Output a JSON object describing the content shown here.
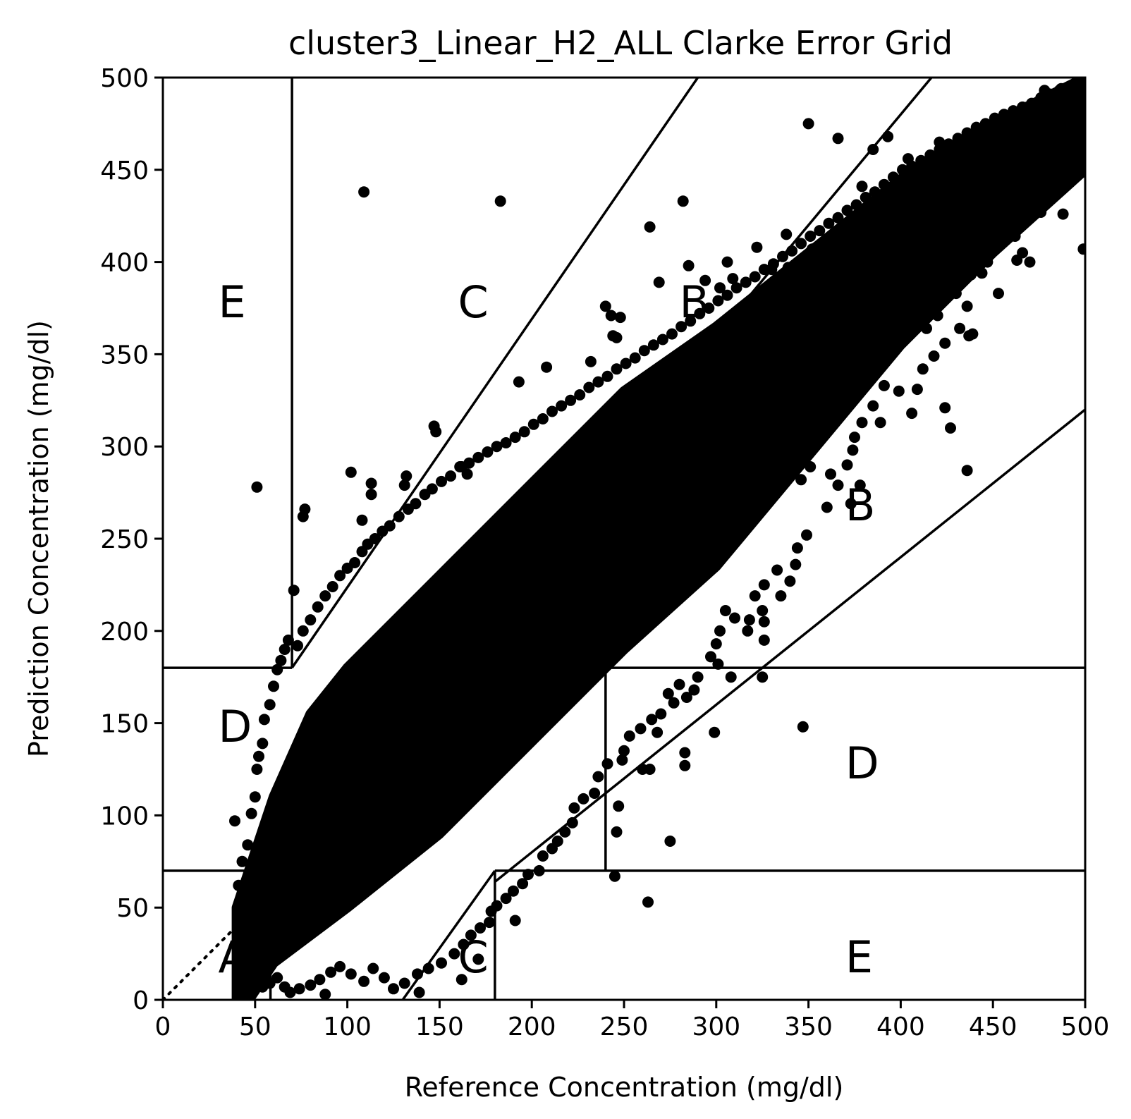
{
  "chart_data": {
    "type": "scatter",
    "title": "cluster3_Linear_H2_ALL Clarke Error Grid",
    "xlabel": "Reference Concentration (mg/dl)",
    "ylabel": "Prediction Concentration (mg/dl)",
    "xlim": [
      0,
      500
    ],
    "ylim": [
      0,
      500
    ],
    "xticks": [
      0,
      50,
      100,
      150,
      200,
      250,
      300,
      350,
      400,
      450,
      500
    ],
    "yticks": [
      0,
      50,
      100,
      150,
      200,
      250,
      300,
      350,
      400,
      450,
      500
    ],
    "grid": false,
    "legend": "none",
    "marker_color": "#000000",
    "zone_labels": [
      {
        "text": "A",
        "x": 30,
        "y": 15
      },
      {
        "text": "B",
        "x": 370,
        "y": 260
      },
      {
        "text": "B",
        "x": 280,
        "y": 370
      },
      {
        "text": "C",
        "x": 160,
        "y": 370
      },
      {
        "text": "C",
        "x": 160,
        "y": 15
      },
      {
        "text": "D",
        "x": 30,
        "y": 140
      },
      {
        "text": "D",
        "x": 370,
        "y": 120
      },
      {
        "text": "E",
        "x": 30,
        "y": 370
      },
      {
        "text": "E",
        "x": 370,
        "y": 15
      }
    ],
    "zone_boundaries": [
      {
        "name": "diagonal",
        "style": "dotted",
        "points": [
          [
            0,
            0
          ],
          [
            500,
            500
          ]
        ]
      },
      {
        "name": "E-upper-left-vertical",
        "points": [
          [
            70,
            180
          ],
          [
            70,
            500
          ]
        ]
      },
      {
        "name": "upper-C-boundary",
        "points": [
          [
            70,
            180
          ],
          [
            290,
            500
          ]
        ]
      },
      {
        "name": "A-upper-boundary",
        "points": [
          [
            70,
            84
          ],
          [
            416.67,
            500
          ]
        ]
      },
      {
        "name": "lower-C-boundary",
        "points": [
          [
            130,
            0
          ],
          [
            180,
            70
          ]
        ]
      },
      {
        "name": "A-lower-boundary",
        "points": [
          [
            180,
            64
          ],
          [
            500,
            320
          ]
        ]
      },
      {
        "name": "D-upper-left-horizontal",
        "points": [
          [
            0,
            180
          ],
          [
            70,
            180
          ]
        ]
      },
      {
        "name": "D-lower-left-horizontal",
        "points": [
          [
            0,
            70
          ],
          [
            58.33,
            70
          ]
        ]
      },
      {
        "name": "D-left-vertical",
        "points": [
          [
            58.33,
            70
          ],
          [
            58.33,
            0
          ]
        ]
      },
      {
        "name": "C-lower-vertical",
        "points": [
          [
            180,
            0
          ],
          [
            180,
            70
          ]
        ]
      },
      {
        "name": "D-right-lower-horizontal",
        "points": [
          [
            180,
            70
          ],
          [
            500,
            70
          ]
        ]
      },
      {
        "name": "D-right-vertical",
        "points": [
          [
            240,
            70
          ],
          [
            240,
            180
          ]
        ]
      },
      {
        "name": "D-right-upper-horizontal",
        "points": [
          [
            240,
            180
          ],
          [
            500,
            180
          ]
        ]
      }
    ],
    "points": [
      [
        109,
        438
      ],
      [
        183,
        433
      ],
      [
        51,
        278
      ],
      [
        71,
        222
      ],
      [
        76,
        262
      ],
      [
        77,
        266
      ],
      [
        147,
        311
      ],
      [
        148,
        308
      ],
      [
        102,
        286
      ],
      [
        113,
        280
      ],
      [
        113,
        274
      ],
      [
        131,
        279
      ],
      [
        132,
        284
      ],
      [
        108,
        260
      ],
      [
        162,
        289
      ],
      [
        165,
        285
      ],
      [
        39,
        97
      ],
      [
        42,
        14
      ],
      [
        54,
        7
      ],
      [
        88,
        3
      ],
      [
        139,
        4
      ],
      [
        162,
        11
      ],
      [
        171,
        22
      ],
      [
        177,
        42
      ],
      [
        191,
        43
      ],
      [
        263,
        53
      ],
      [
        245,
        67
      ],
      [
        275,
        86
      ],
      [
        246,
        91
      ],
      [
        247,
        105
      ],
      [
        260,
        125
      ],
      [
        264,
        125
      ],
      [
        283,
        127
      ],
      [
        283,
        134
      ],
      [
        299,
        145
      ],
      [
        347,
        148
      ],
      [
        325,
        175
      ],
      [
        308,
        175
      ],
      [
        326,
        195
      ],
      [
        326,
        205
      ],
      [
        350,
        475
      ],
      [
        366,
        467
      ],
      [
        338,
        415
      ],
      [
        282,
        433
      ],
      [
        264,
        419
      ],
      [
        193,
        335
      ],
      [
        232,
        346
      ],
      [
        208,
        343
      ],
      [
        244,
        360
      ],
      [
        246,
        359
      ],
      [
        240,
        376
      ],
      [
        243,
        371
      ],
      [
        248,
        370
      ],
      [
        269,
        389
      ],
      [
        285,
        398
      ],
      [
        294,
        390
      ],
      [
        302,
        386
      ],
      [
        306,
        400
      ],
      [
        309,
        391
      ],
      [
        322,
        408
      ],
      [
        330,
        396
      ],
      [
        339,
        397
      ],
      [
        352,
        407
      ],
      [
        355,
        398
      ],
      [
        385,
        461
      ],
      [
        393,
        468
      ],
      [
        379,
        441
      ],
      [
        385,
        432
      ],
      [
        392,
        421
      ],
      [
        404,
        456
      ],
      [
        421,
        465
      ],
      [
        439,
        468
      ],
      [
        478,
        493
      ],
      [
        487,
        494
      ],
      [
        493,
        488
      ],
      [
        499,
        485
      ],
      [
        499,
        407
      ],
      [
        488,
        426
      ],
      [
        486,
        439
      ],
      [
        476,
        427
      ],
      [
        466,
        405
      ],
      [
        470,
        400
      ],
      [
        462,
        414
      ],
      [
        463,
        401
      ],
      [
        447,
        400
      ],
      [
        449,
        412
      ],
      [
        438,
        393
      ],
      [
        453,
        383
      ],
      [
        444,
        394
      ],
      [
        430,
        383
      ],
      [
        420,
        371
      ],
      [
        432,
        364
      ],
      [
        436,
        376
      ],
      [
        439,
        361
      ],
      [
        437,
        360
      ],
      [
        424,
        356
      ],
      [
        418,
        349
      ],
      [
        414,
        364
      ],
      [
        424,
        321
      ],
      [
        427,
        310
      ],
      [
        436,
        287
      ],
      [
        412,
        342
      ],
      [
        409,
        331
      ],
      [
        406,
        318
      ],
      [
        399,
        330
      ],
      [
        389,
        313
      ],
      [
        391,
        333
      ],
      [
        385,
        322
      ],
      [
        379,
        313
      ],
      [
        375,
        305
      ],
      [
        374,
        298
      ],
      [
        371,
        290
      ],
      [
        378,
        279
      ],
      [
        373,
        269
      ],
      [
        360,
        267
      ],
      [
        362,
        285
      ],
      [
        366,
        279
      ],
      [
        351,
        289
      ],
      [
        346,
        282
      ],
      [
        349,
        252
      ],
      [
        343,
        236
      ],
      [
        344,
        245
      ],
      [
        340,
        227
      ],
      [
        333,
        233
      ],
      [
        335,
        219
      ],
      [
        326,
        225
      ],
      [
        325,
        211
      ],
      [
        321,
        219
      ],
      [
        318,
        206
      ],
      [
        317,
        200
      ],
      [
        310,
        207
      ],
      [
        305,
        211
      ],
      [
        302,
        200
      ],
      [
        300,
        193
      ],
      [
        301,
        182
      ],
      [
        297,
        186
      ],
      [
        290,
        175
      ],
      [
        288,
        168
      ],
      [
        284,
        164
      ],
      [
        280,
        171
      ],
      [
        277,
        161
      ],
      [
        274,
        166
      ],
      [
        270,
        155
      ],
      [
        268,
        145
      ],
      [
        265,
        152
      ],
      [
        259,
        147
      ],
      [
        253,
        143
      ],
      [
        250,
        135
      ],
      [
        249,
        130
      ],
      [
        241,
        128
      ],
      [
        236,
        121
      ],
      [
        234,
        112
      ],
      [
        228,
        109
      ],
      [
        223,
        104
      ],
      [
        222,
        96
      ],
      [
        218,
        91
      ],
      [
        214,
        86
      ],
      [
        211,
        82
      ],
      [
        206,
        78
      ],
      [
        204,
        70
      ],
      [
        198,
        68
      ],
      [
        195,
        63
      ],
      [
        190,
        59
      ],
      [
        186,
        55
      ],
      [
        181,
        51
      ],
      [
        178,
        48
      ],
      [
        172,
        39
      ],
      [
        167,
        35
      ],
      [
        163,
        30
      ],
      [
        158,
        25
      ],
      [
        151,
        20
      ],
      [
        144,
        17
      ],
      [
        138,
        14
      ],
      [
        131,
        9
      ],
      [
        125,
        6
      ],
      [
        120,
        12
      ],
      [
        114,
        17
      ],
      [
        109,
        10
      ],
      [
        102,
        14
      ],
      [
        96,
        18
      ],
      [
        91,
        15
      ],
      [
        85,
        11
      ],
      [
        80,
        8
      ],
      [
        74,
        6
      ],
      [
        69,
        4
      ],
      [
        66,
        7
      ],
      [
        62,
        12
      ],
      [
        58,
        9
      ],
      [
        55,
        15
      ],
      [
        47,
        30
      ],
      [
        45,
        50
      ],
      [
        41,
        62
      ],
      [
        43,
        75
      ],
      [
        46,
        84
      ],
      [
        48,
        101
      ],
      [
        50,
        110
      ],
      [
        51,
        125
      ],
      [
        52,
        132
      ],
      [
        54,
        139
      ],
      [
        55,
        152
      ],
      [
        58,
        160
      ],
      [
        60,
        170
      ],
      [
        62,
        179
      ],
      [
        64,
        184
      ],
      [
        66,
        190
      ],
      [
        68,
        195
      ],
      [
        73,
        192
      ],
      [
        76,
        200
      ],
      [
        80,
        206
      ],
      [
        84,
        213
      ],
      [
        88,
        219
      ],
      [
        92,
        224
      ],
      [
        96,
        230
      ],
      [
        100,
        234
      ],
      [
        104,
        237
      ],
      [
        108,
        243
      ],
      [
        111,
        247
      ],
      [
        115,
        250
      ],
      [
        119,
        254
      ],
      [
        123,
        257
      ],
      [
        128,
        262
      ],
      [
        133,
        266
      ],
      [
        137,
        269
      ],
      [
        142,
        274
      ],
      [
        146,
        277
      ],
      [
        151,
        281
      ],
      [
        156,
        284
      ],
      [
        161,
        289
      ],
      [
        166,
        291
      ],
      [
        171,
        294
      ],
      [
        176,
        297
      ],
      [
        181,
        300
      ],
      [
        186,
        302
      ],
      [
        191,
        305
      ],
      [
        196,
        308
      ],
      [
        201,
        312
      ],
      [
        206,
        315
      ],
      [
        211,
        319
      ],
      [
        216,
        322
      ],
      [
        221,
        325
      ],
      [
        226,
        328
      ],
      [
        231,
        332
      ],
      [
        236,
        335
      ],
      [
        241,
        338
      ],
      [
        246,
        342
      ],
      [
        251,
        345
      ],
      [
        256,
        348
      ],
      [
        261,
        352
      ],
      [
        266,
        355
      ],
      [
        271,
        358
      ],
      [
        276,
        361
      ],
      [
        281,
        365
      ],
      [
        286,
        368
      ],
      [
        291,
        372
      ],
      [
        296,
        375
      ],
      [
        301,
        379
      ],
      [
        306,
        382
      ],
      [
        311,
        386
      ],
      [
        316,
        389
      ],
      [
        321,
        392
      ],
      [
        326,
        396
      ],
      [
        331,
        399
      ],
      [
        336,
        403
      ],
      [
        341,
        406
      ],
      [
        346,
        410
      ],
      [
        351,
        414
      ],
      [
        356,
        417
      ],
      [
        361,
        421
      ],
      [
        366,
        424
      ],
      [
        371,
        428
      ],
      [
        376,
        431
      ],
      [
        381,
        435
      ],
      [
        386,
        438
      ],
      [
        391,
        442
      ],
      [
        396,
        446
      ],
      [
        401,
        450
      ],
      [
        406,
        452
      ],
      [
        411,
        455
      ],
      [
        416,
        458
      ],
      [
        421,
        461
      ],
      [
        426,
        464
      ],
      [
        431,
        467
      ],
      [
        436,
        470
      ],
      [
        441,
        473
      ],
      [
        446,
        475
      ],
      [
        451,
        478
      ],
      [
        456,
        480
      ],
      [
        461,
        482
      ],
      [
        466,
        484
      ],
      [
        471,
        486
      ],
      [
        476,
        489
      ],
      [
        481,
        491
      ],
      [
        486,
        493
      ],
      [
        491,
        495
      ],
      [
        496,
        497
      ]
    ],
    "dense_band_note": "",
    "dense_band": {
      "centerline": [
        [
          40,
          20
        ],
        [
          60,
          65
        ],
        [
          80,
          95
        ],
        [
          100,
          115
        ],
        [
          150,
          160
        ],
        [
          200,
          210
        ],
        [
          250,
          260
        ],
        [
          300,
          300
        ],
        [
          350,
          350
        ],
        [
          400,
          400
        ],
        [
          450,
          440
        ],
        [
          500,
          475
        ]
      ],
      "half_width": [
        [
          40,
          30
        ],
        [
          60,
          45
        ],
        [
          80,
          60
        ],
        [
          100,
          65
        ],
        [
          150,
          70
        ],
        [
          200,
          70
        ],
        [
          250,
          70
        ],
        [
          300,
          65
        ],
        [
          350,
          55
        ],
        [
          400,
          45
        ],
        [
          450,
          35
        ],
        [
          500,
          25
        ]
      ]
    }
  }
}
